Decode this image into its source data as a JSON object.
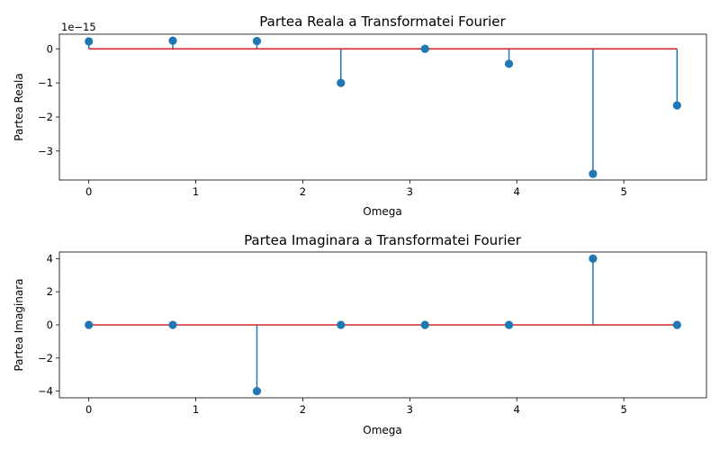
{
  "chart_data": [
    {
      "type": "stem",
      "title": "Partea Reala a Transformatei Fourier",
      "xlabel": "Omega",
      "ylabel": "Partea Reala",
      "offset_text": "1e−15",
      "x": [
        0,
        0.785,
        1.571,
        2.356,
        3.142,
        3.927,
        4.712,
        5.498
      ],
      "y": [
        0.22,
        0.24,
        0.23,
        -1.0,
        0.0,
        -0.44,
        -3.67,
        -1.66
      ],
      "xlim": [
        -0.275,
        5.773
      ],
      "ylim": [
        -3.85,
        0.43
      ],
      "xticks": [
        0,
        1,
        2,
        3,
        4,
        5
      ],
      "xtick_labels": [
        "0",
        "1",
        "2",
        "3",
        "4",
        "5"
      ],
      "yticks": [
        0,
        -1,
        -2,
        -3
      ],
      "ytick_labels": [
        "0",
        "−1",
        "−2",
        "−3"
      ],
      "baseline": 0,
      "colors": {
        "stem": "#1f77b4",
        "baseline": "#d62728"
      }
    },
    {
      "type": "stem",
      "title": "Partea Imaginara a Transformatei Fourier",
      "xlabel": "Omega",
      "ylabel": "Partea Imaginara",
      "x": [
        0,
        0.785,
        1.571,
        2.356,
        3.142,
        3.927,
        4.712,
        5.498
      ],
      "y": [
        0,
        0,
        -4,
        0,
        0,
        0,
        4,
        0
      ],
      "xlim": [
        -0.275,
        5.773
      ],
      "ylim": [
        -4.4,
        4.4
      ],
      "xticks": [
        0,
        1,
        2,
        3,
        4,
        5
      ],
      "xtick_labels": [
        "0",
        "1",
        "2",
        "3",
        "4",
        "5"
      ],
      "yticks": [
        4,
        2,
        0,
        -2,
        -4
      ],
      "ytick_labels": [
        "4",
        "2",
        "0",
        "−2",
        "−4"
      ],
      "baseline": 0,
      "colors": {
        "stem": "#1f77b4",
        "baseline": "#d62728"
      }
    }
  ]
}
